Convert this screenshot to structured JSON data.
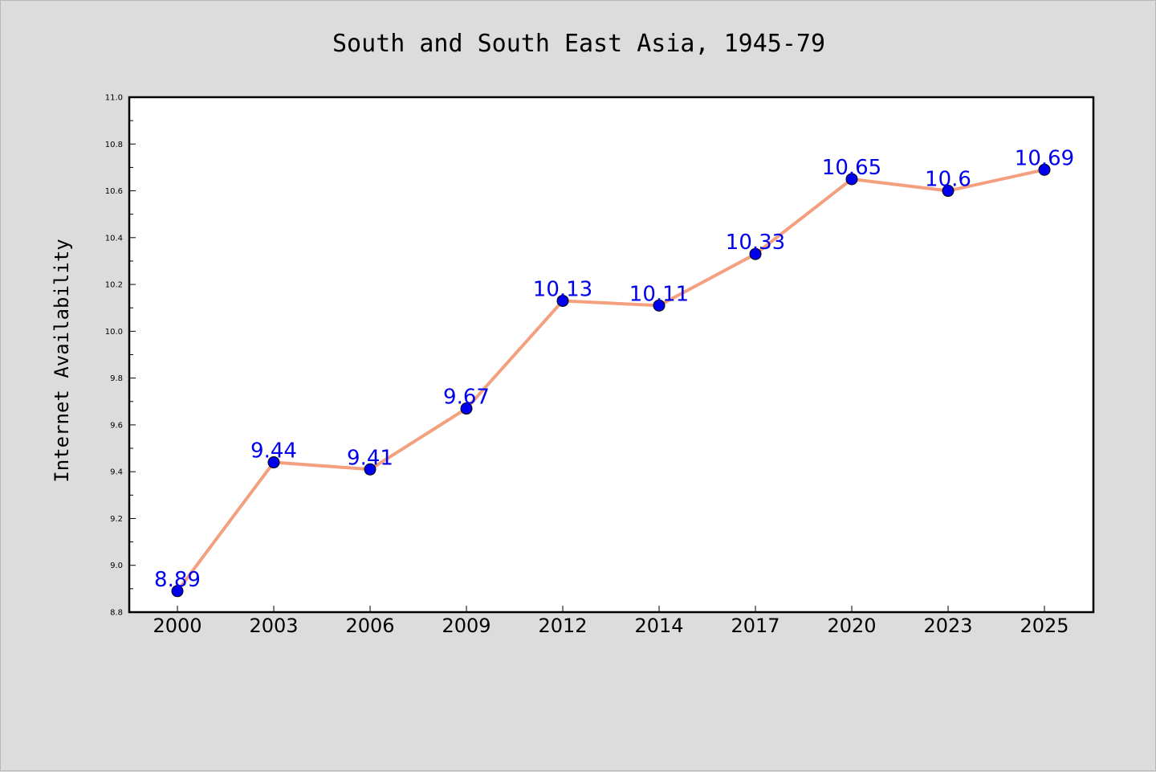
{
  "chart_data": {
    "type": "line",
    "title": "South and South East Asia, 1945-79",
    "xlabel": "",
    "ylabel": "Internet Availability",
    "categories": [
      "2000",
      "2003",
      "2006",
      "2009",
      "2012",
      "2014",
      "2017",
      "2020",
      "2023",
      "2025"
    ],
    "series": [
      {
        "values": [
          8.89,
          9.44,
          9.41,
          9.67,
          10.13,
          10.11,
          10.33,
          10.65,
          10.6,
          10.69
        ],
        "data_labels": [
          "8.89",
          "9.44",
          "9.41",
          "9.67",
          "10.13",
          "10.11",
          "10.33",
          "10.65",
          "10.6",
          "10.69"
        ],
        "line_color": "#f4a07f",
        "marker_color": "#0000ee",
        "label_color": "#0000ee"
      }
    ],
    "ylim": [
      8.8,
      11.0
    ],
    "yticks": [
      "8.8",
      "9.0",
      "9.2",
      "9.4",
      "9.6",
      "9.8",
      "10.0",
      "10.2",
      "10.4",
      "10.6",
      "10.8",
      "11.0"
    ],
    "grid": false,
    "legend": "none",
    "background_color": "#dcdcdc",
    "plot_background_color": "#ffffff"
  }
}
